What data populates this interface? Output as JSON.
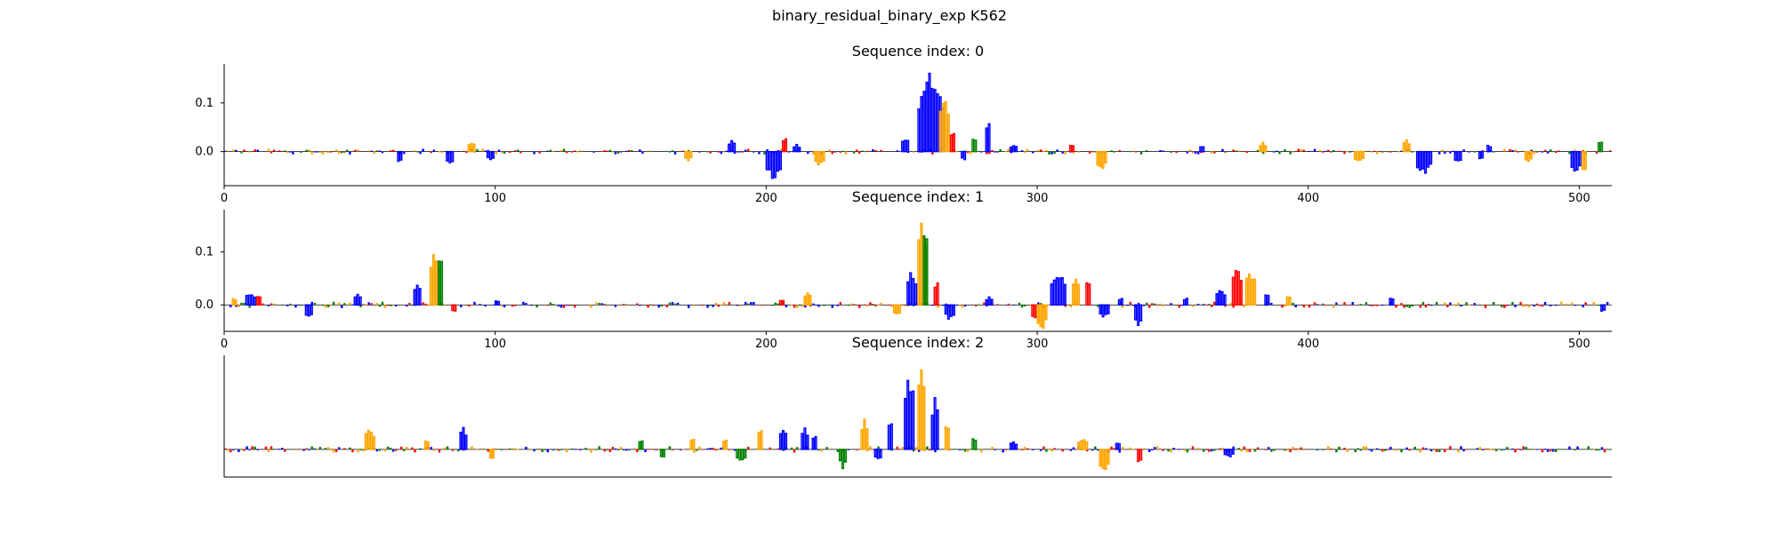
{
  "figure": {
    "title": "binary_residual_binary_exp K562"
  },
  "colors": {
    "A": "#008000",
    "C": "#0000ff",
    "G": "#ffa500",
    "T": "#ff0000",
    "axis": "#000000",
    "baseline": "#000000"
  },
  "chart_data": [
    {
      "type": "bar",
      "title": "Sequence index: 0",
      "xlim": [
        0,
        512
      ],
      "ylim": [
        -0.07,
        0.18
      ],
      "xticks": [
        0,
        100,
        200,
        300,
        400,
        500
      ],
      "yticks": [
        0.0,
        0.1
      ],
      "ytick_labels": [
        "0.0",
        "0.1"
      ],
      "peaks": [
        {
          "x": 64,
          "w": 2,
          "v": -0.025,
          "base": "C"
        },
        {
          "x": 82,
          "w": 3,
          "v": -0.03,
          "base": "C"
        },
        {
          "x": 90,
          "w": 3,
          "v": 0.02,
          "base": "G"
        },
        {
          "x": 97,
          "w": 3,
          "v": -0.02,
          "base": "C"
        },
        {
          "x": 170,
          "w": 3,
          "v": -0.02,
          "base": "G"
        },
        {
          "x": 186,
          "w": 3,
          "v": 0.025,
          "base": "C"
        },
        {
          "x": 200,
          "w": 6,
          "v": -0.06,
          "base": "C"
        },
        {
          "x": 206,
          "w": 2,
          "v": 0.035,
          "base": "T"
        },
        {
          "x": 210,
          "w": 3,
          "v": 0.015,
          "base": "C"
        },
        {
          "x": 218,
          "w": 4,
          "v": -0.03,
          "base": "G"
        },
        {
          "x": 250,
          "w": 3,
          "v": 0.03,
          "base": "C"
        },
        {
          "x": 256,
          "w": 10,
          "v": 0.17,
          "base": "C"
        },
        {
          "x": 264,
          "w": 4,
          "v": 0.12,
          "base": "G"
        },
        {
          "x": 268,
          "w": 2,
          "v": 0.05,
          "base": "T"
        },
        {
          "x": 272,
          "w": 2,
          "v": -0.02,
          "base": "C"
        },
        {
          "x": 276,
          "w": 2,
          "v": 0.03,
          "base": "A"
        },
        {
          "x": 281,
          "w": 2,
          "v": 0.07,
          "base": "C"
        },
        {
          "x": 290,
          "w": 3,
          "v": 0.015,
          "base": "C"
        },
        {
          "x": 312,
          "w": 2,
          "v": 0.015,
          "base": "T"
        },
        {
          "x": 322,
          "w": 4,
          "v": -0.04,
          "base": "G"
        },
        {
          "x": 360,
          "w": 2,
          "v": 0.015,
          "base": "C"
        },
        {
          "x": 382,
          "w": 3,
          "v": 0.02,
          "base": "G"
        },
        {
          "x": 417,
          "w": 4,
          "v": -0.025,
          "base": "G"
        },
        {
          "x": 435,
          "w": 3,
          "v": 0.025,
          "base": "G"
        },
        {
          "x": 440,
          "w": 6,
          "v": -0.05,
          "base": "C"
        },
        {
          "x": 454,
          "w": 3,
          "v": -0.025,
          "base": "C"
        },
        {
          "x": 463,
          "w": 2,
          "v": -0.02,
          "base": "C"
        },
        {
          "x": 466,
          "w": 2,
          "v": 0.015,
          "base": "C"
        },
        {
          "x": 480,
          "w": 3,
          "v": -0.025,
          "base": "G"
        },
        {
          "x": 497,
          "w": 4,
          "v": -0.045,
          "base": "C"
        },
        {
          "x": 501,
          "w": 2,
          "v": -0.05,
          "base": "G"
        },
        {
          "x": 507,
          "w": 2,
          "v": 0.025,
          "base": "A"
        }
      ]
    },
    {
      "type": "bar",
      "title": "Sequence index: 1",
      "xlim": [
        0,
        512
      ],
      "ylim": [
        -0.05,
        0.18
      ],
      "xticks": [
        0,
        100,
        200,
        300,
        400,
        500
      ],
      "yticks": [
        0.0,
        0.1
      ],
      "ytick_labels": [
        "0.0",
        "0.1"
      ],
      "peaks": [
        {
          "x": 3,
          "w": 2,
          "v": 0.015,
          "base": "G"
        },
        {
          "x": 8,
          "w": 4,
          "v": 0.025,
          "base": "C"
        },
        {
          "x": 12,
          "w": 2,
          "v": 0.02,
          "base": "T"
        },
        {
          "x": 30,
          "w": 3,
          "v": -0.025,
          "base": "C"
        },
        {
          "x": 48,
          "w": 3,
          "v": 0.02,
          "base": "C"
        },
        {
          "x": 70,
          "w": 3,
          "v": 0.04,
          "base": "C"
        },
        {
          "x": 76,
          "w": 4,
          "v": 0.11,
          "base": "G"
        },
        {
          "x": 79,
          "w": 2,
          "v": 0.1,
          "base": "A"
        },
        {
          "x": 84,
          "w": 2,
          "v": -0.015,
          "base": "T"
        },
        {
          "x": 100,
          "w": 2,
          "v": 0.01,
          "base": "C"
        },
        {
          "x": 205,
          "w": 2,
          "v": 0.01,
          "base": "T"
        },
        {
          "x": 214,
          "w": 3,
          "v": 0.025,
          "base": "G"
        },
        {
          "x": 247,
          "w": 3,
          "v": -0.02,
          "base": "G"
        },
        {
          "x": 252,
          "w": 4,
          "v": 0.07,
          "base": "C"
        },
        {
          "x": 256,
          "w": 4,
          "v": 0.18,
          "base": "G"
        },
        {
          "x": 258,
          "w": 2,
          "v": 0.17,
          "base": "A"
        },
        {
          "x": 262,
          "w": 2,
          "v": 0.05,
          "base": "T"
        },
        {
          "x": 266,
          "w": 4,
          "v": -0.03,
          "base": "C"
        },
        {
          "x": 281,
          "w": 3,
          "v": 0.015,
          "base": "C"
        },
        {
          "x": 298,
          "w": 2,
          "v": -0.03,
          "base": "T"
        },
        {
          "x": 300,
          "w": 4,
          "v": -0.05,
          "base": "G"
        },
        {
          "x": 305,
          "w": 6,
          "v": 0.07,
          "base": "C"
        },
        {
          "x": 313,
          "w": 3,
          "v": 0.06,
          "base": "G"
        },
        {
          "x": 318,
          "w": 2,
          "v": 0.06,
          "base": "T"
        },
        {
          "x": 323,
          "w": 4,
          "v": -0.025,
          "base": "C"
        },
        {
          "x": 330,
          "w": 2,
          "v": 0.015,
          "base": "C"
        },
        {
          "x": 336,
          "w": 3,
          "v": -0.04,
          "base": "C"
        },
        {
          "x": 354,
          "w": 2,
          "v": 0.015,
          "base": "C"
        },
        {
          "x": 366,
          "w": 4,
          "v": 0.03,
          "base": "C"
        },
        {
          "x": 372,
          "w": 4,
          "v": 0.08,
          "base": "T"
        },
        {
          "x": 377,
          "w": 4,
          "v": 0.07,
          "base": "G"
        },
        {
          "x": 384,
          "w": 2,
          "v": 0.025,
          "base": "C"
        },
        {
          "x": 392,
          "w": 2,
          "v": 0.02,
          "base": "G"
        },
        {
          "x": 430,
          "w": 2,
          "v": 0.015,
          "base": "C"
        },
        {
          "x": 508,
          "w": 2,
          "v": -0.015,
          "base": "C"
        }
      ]
    },
    {
      "type": "bar",
      "title": "Sequence index: 2",
      "xlim": [
        0,
        512
      ],
      "ylim": [
        -0.05,
        0.17
      ],
      "xticks": [],
      "yticks": [],
      "ytick_labels": [],
      "peaks": [
        {
          "x": 52,
          "w": 4,
          "v": 0.04,
          "base": "G"
        },
        {
          "x": 74,
          "w": 2,
          "v": 0.02,
          "base": "G"
        },
        {
          "x": 87,
          "w": 3,
          "v": 0.04,
          "base": "C"
        },
        {
          "x": 98,
          "w": 2,
          "v": -0.02,
          "base": "G"
        },
        {
          "x": 153,
          "w": 2,
          "v": 0.02,
          "base": "A"
        },
        {
          "x": 161,
          "w": 2,
          "v": -0.02,
          "base": "A"
        },
        {
          "x": 172,
          "w": 2,
          "v": 0.025,
          "base": "G"
        },
        {
          "x": 184,
          "w": 2,
          "v": 0.02,
          "base": "G"
        },
        {
          "x": 189,
          "w": 4,
          "v": -0.025,
          "base": "A"
        },
        {
          "x": 197,
          "w": 2,
          "v": 0.04,
          "base": "G"
        },
        {
          "x": 205,
          "w": 3,
          "v": 0.04,
          "base": "C"
        },
        {
          "x": 213,
          "w": 3,
          "v": 0.04,
          "base": "C"
        },
        {
          "x": 217,
          "w": 2,
          "v": 0.03,
          "base": "C"
        },
        {
          "x": 227,
          "w": 3,
          "v": -0.035,
          "base": "A"
        },
        {
          "x": 235,
          "w": 3,
          "v": 0.06,
          "base": "G"
        },
        {
          "x": 240,
          "w": 3,
          "v": -0.02,
          "base": "C"
        },
        {
          "x": 245,
          "w": 2,
          "v": 0.065,
          "base": "C"
        },
        {
          "x": 251,
          "w": 4,
          "v": 0.15,
          "base": "C"
        },
        {
          "x": 256,
          "w": 3,
          "v": 0.16,
          "base": "G"
        },
        {
          "x": 261,
          "w": 3,
          "v": 0.1,
          "base": "C"
        },
        {
          "x": 266,
          "w": 2,
          "v": 0.05,
          "base": "G"
        },
        {
          "x": 276,
          "w": 2,
          "v": 0.025,
          "base": "A"
        },
        {
          "x": 290,
          "w": 3,
          "v": 0.015,
          "base": "C"
        },
        {
          "x": 315,
          "w": 4,
          "v": 0.02,
          "base": "G"
        },
        {
          "x": 323,
          "w": 4,
          "v": -0.045,
          "base": "G"
        },
        {
          "x": 329,
          "w": 2,
          "v": 0.015,
          "base": "C"
        },
        {
          "x": 337,
          "w": 2,
          "v": -0.03,
          "base": "T"
        },
        {
          "x": 369,
          "w": 4,
          "v": -0.015,
          "base": "C"
        }
      ]
    }
  ]
}
